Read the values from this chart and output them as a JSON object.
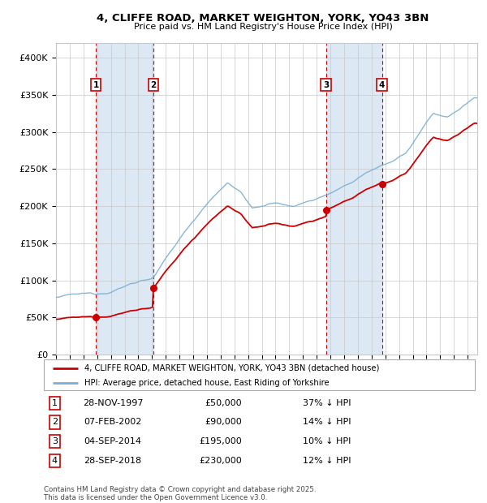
{
  "title_line1": "4, CLIFFE ROAD, MARKET WEIGHTON, YORK, YO43 3BN",
  "title_line2": "Price paid vs. HM Land Registry's House Price Index (HPI)",
  "ylim": [
    0,
    420000
  ],
  "yticks": [
    0,
    50000,
    100000,
    150000,
    200000,
    250000,
    300000,
    350000,
    400000
  ],
  "ytick_labels": [
    "£0",
    "£50K",
    "£100K",
    "£150K",
    "£200K",
    "£250K",
    "£300K",
    "£350K",
    "£400K"
  ],
  "hpi_color": "#7bafd4",
  "price_color": "#cc0000",
  "background_color": "#ffffff",
  "grid_color": "#c8c8c8",
  "shade_color": "#dce9f5",
  "transactions": [
    {
      "num": 1,
      "date_label": "28-NOV-1997",
      "date_x": 1997.91,
      "price": 50000,
      "hpi_pct": "37% ↓ HPI"
    },
    {
      "num": 2,
      "date_label": "07-FEB-2002",
      "date_x": 2002.1,
      "price": 90000,
      "hpi_pct": "14% ↓ HPI"
    },
    {
      "num": 3,
      "date_label": "04-SEP-2014",
      "date_x": 2014.67,
      "price": 195000,
      "hpi_pct": "10% ↓ HPI"
    },
    {
      "num": 4,
      "date_label": "28-SEP-2018",
      "date_x": 2018.75,
      "price": 230000,
      "hpi_pct": "12% ↓ HPI"
    }
  ],
  "legend_price_label": "4, CLIFFE ROAD, MARKET WEIGHTON, YORK, YO43 3BN (detached house)",
  "legend_hpi_label": "HPI: Average price, detached house, East Riding of Yorkshire",
  "footnote": "Contains HM Land Registry data © Crown copyright and database right 2025.\nThis data is licensed under the Open Government Licence v3.0.",
  "xlim_start": 1995.0,
  "xlim_end": 2025.7
}
